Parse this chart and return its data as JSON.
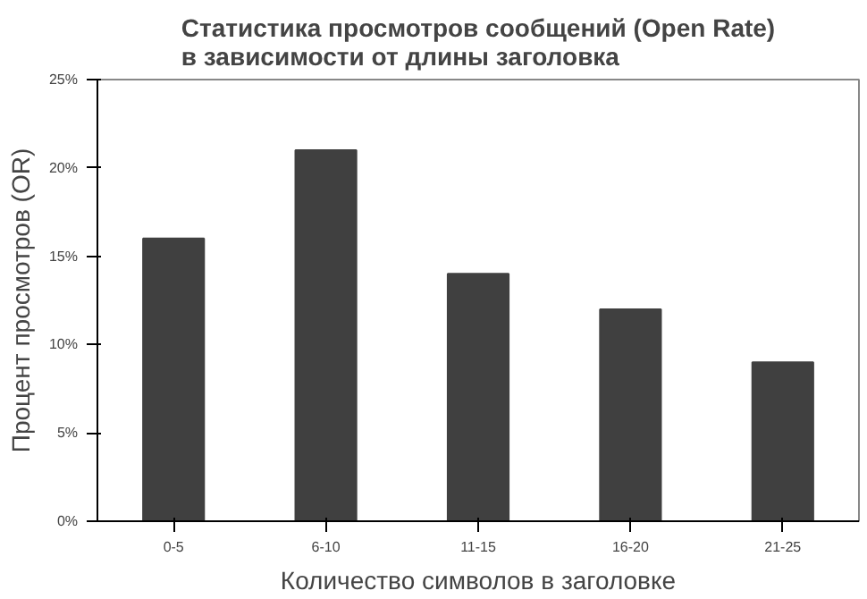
{
  "chart_data": {
    "type": "bar",
    "title": "Статистика просмотров сообщений (Open Rate)\nв зависимости от длины заголовка",
    "xlabel": "Количество символов в заголовке",
    "ylabel": "Процент просмотров (OR)",
    "categories": [
      "0-5",
      "6-10",
      "11-15",
      "16-20",
      "21-25"
    ],
    "values": [
      16,
      21,
      14,
      12,
      9
    ],
    "color": "#404040",
    "ylim": [
      0,
      25
    ],
    "yticks": [
      {
        "value": 0,
        "label": "0%"
      },
      {
        "value": 5,
        "label": "5%"
      },
      {
        "value": 10,
        "label": "10%"
      },
      {
        "value": 15,
        "label": "15%"
      },
      {
        "value": 20,
        "label": "20%"
      },
      {
        "value": 25,
        "label": "25%"
      }
    ],
    "grid": false
  }
}
